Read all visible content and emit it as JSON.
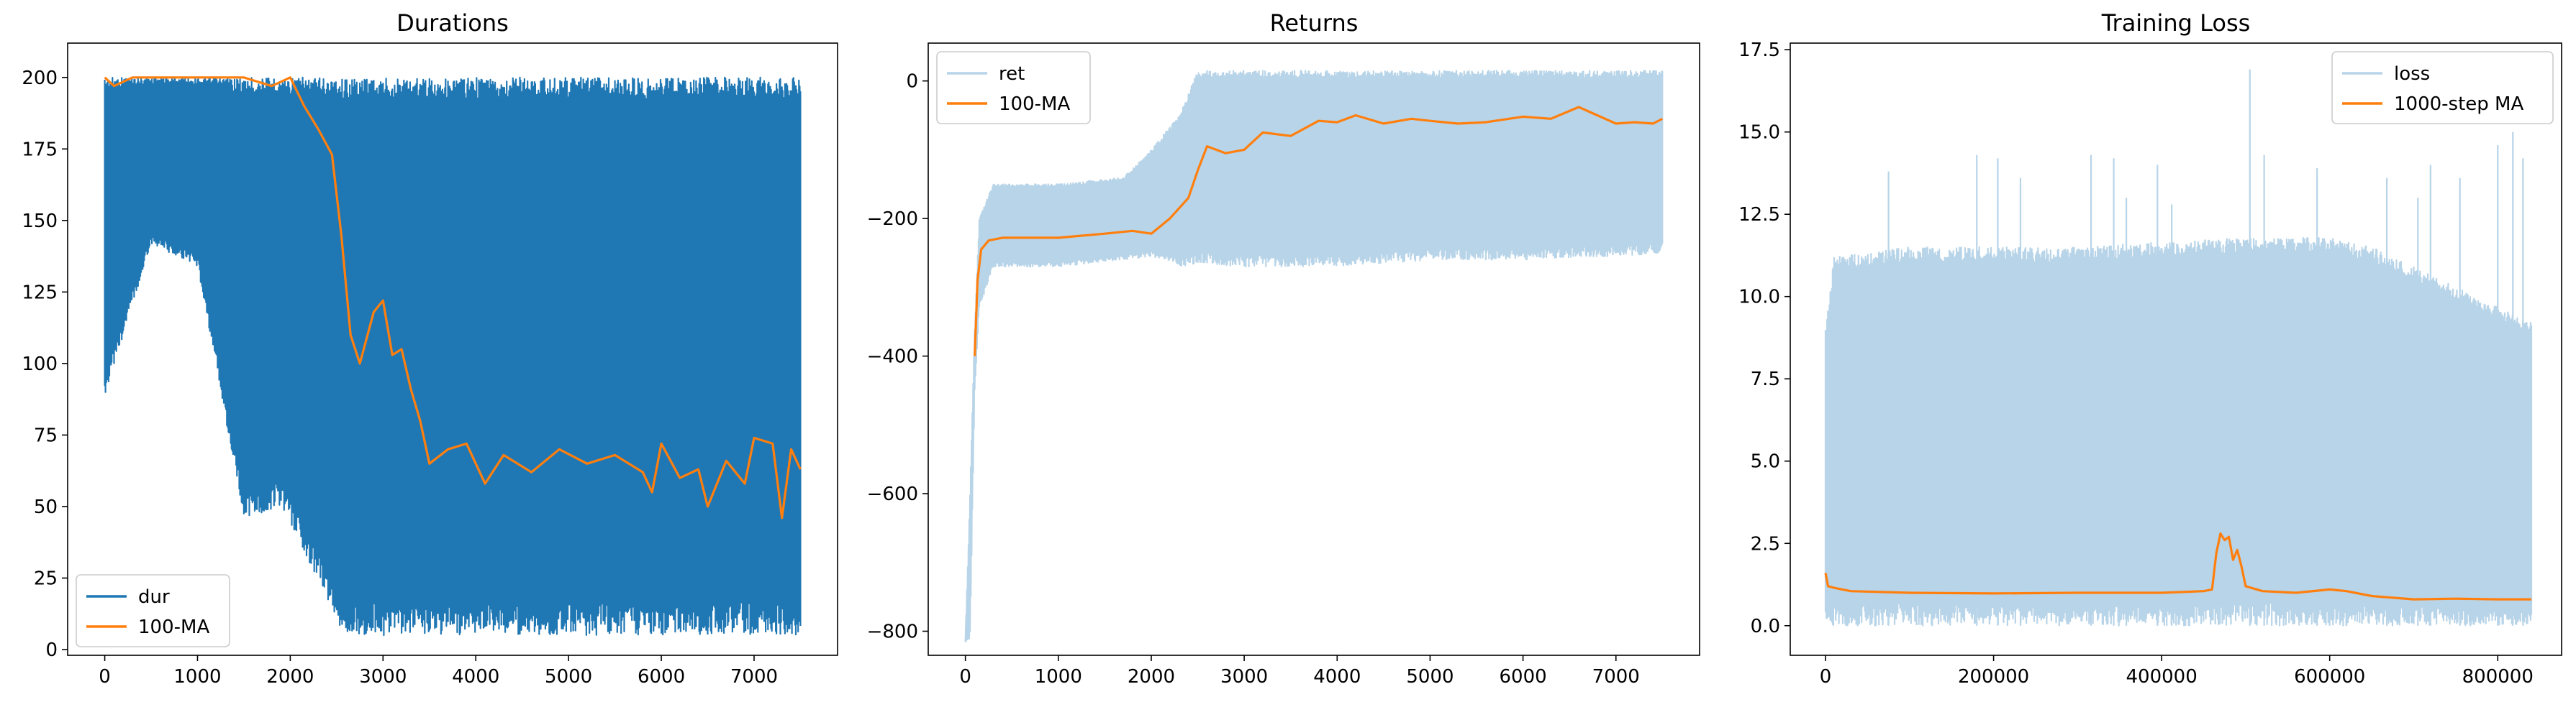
{
  "chart_data": [
    {
      "type": "line",
      "title": "Durations",
      "xlabel": "",
      "ylabel": "",
      "xlim": [
        -400,
        7900
      ],
      "ylim": [
        -2,
        212
      ],
      "xticks": [
        0,
        1000,
        2000,
        3000,
        4000,
        5000,
        6000,
        7000
      ],
      "yticks": [
        0,
        25,
        50,
        75,
        100,
        125,
        150,
        175,
        200
      ],
      "legend_position": "lower-left",
      "series": [
        {
          "name": "dur",
          "color": "#1f77b4",
          "style": "noisy-envelope",
          "x": [
            0,
            500,
            1000,
            1500,
            1900,
            2100,
            2300,
            2450,
            2550,
            7500
          ],
          "upper": [
            200,
            200,
            200,
            200,
            200,
            200,
            200,
            200,
            200,
            200
          ],
          "lower": [
            89,
            142,
            134,
            46,
            50,
            38,
            24,
            14,
            5,
            5
          ]
        },
        {
          "name": "100-MA",
          "color": "#ff7f0e",
          "style": "line",
          "x": [
            0,
            100,
            300,
            1000,
            1500,
            1800,
            2000,
            2150,
            2300,
            2450,
            2550,
            2650,
            2750,
            2900,
            3000,
            3100,
            3200,
            3300,
            3400,
            3500,
            3700,
            3900,
            4100,
            4300,
            4600,
            4900,
            5200,
            5500,
            5800,
            5900,
            6000,
            6200,
            6400,
            6500,
            6700,
            6900,
            7000,
            7200,
            7300,
            7400,
            7500
          ],
          "values": [
            200,
            197,
            200,
            200,
            200,
            197,
            200,
            190,
            182,
            173,
            145,
            110,
            100,
            118,
            122,
            103,
            105,
            91,
            80,
            65,
            70,
            72,
            58,
            68,
            62,
            70,
            65,
            68,
            62,
            55,
            72,
            60,
            63,
            50,
            66,
            58,
            74,
            72,
            46,
            70,
            63
          ]
        }
      ]
    },
    {
      "type": "line",
      "title": "Returns",
      "xlabel": "",
      "ylabel": "",
      "xlim": [
        -400,
        7900
      ],
      "ylim": [
        -835,
        55
      ],
      "xticks": [
        0,
        1000,
        2000,
        3000,
        4000,
        5000,
        6000,
        7000
      ],
      "yticks": [
        -800,
        -600,
        -400,
        -200,
        0
      ],
      "legend_position": "upper-left",
      "series": [
        {
          "name": "ret",
          "color": "#b8d4e8",
          "style": "noisy-envelope",
          "x": [
            0,
            50,
            100,
            150,
            300,
            1000,
            1700,
            2000,
            2300,
            2500,
            3000,
            4000,
            5000,
            6000,
            7000,
            7500
          ],
          "upper": [
            -810,
            -600,
            -360,
            -200,
            -150,
            -150,
            -140,
            -100,
            -50,
            15,
            15,
            15,
            15,
            15,
            15,
            15
          ],
          "lower": [
            -815,
            -810,
            -450,
            -330,
            -270,
            -270,
            -260,
            -255,
            -270,
            -265,
            -270,
            -270,
            -260,
            -260,
            -255,
            -250
          ]
        },
        {
          "name": "100-MA",
          "color": "#ff7f0e",
          "style": "line",
          "x": [
            100,
            130,
            170,
            250,
            400,
            1000,
            1500,
            1800,
            2000,
            2200,
            2400,
            2500,
            2600,
            2800,
            3000,
            3200,
            3500,
            3800,
            4000,
            4200,
            4500,
            4800,
            5000,
            5300,
            5600,
            6000,
            6300,
            6600,
            6800,
            7000,
            7200,
            7400,
            7500
          ],
          "values": [
            -400,
            -290,
            -245,
            -232,
            -228,
            -228,
            -222,
            -218,
            -222,
            -200,
            -170,
            -130,
            -95,
            -105,
            -100,
            -75,
            -80,
            -58,
            -60,
            -50,
            -62,
            -55,
            -58,
            -62,
            -60,
            -52,
            -55,
            -38,
            -50,
            -62,
            -60,
            -62,
            -55
          ]
        }
      ]
    },
    {
      "type": "line",
      "title": "Training Loss",
      "xlabel": "",
      "ylabel": "",
      "xlim": [
        -42000,
        876000
      ],
      "ylim": [
        -0.9,
        17.7
      ],
      "xticks": [
        0,
        200000,
        400000,
        600000,
        800000
      ],
      "yticks": [
        0.0,
        2.5,
        5.0,
        7.5,
        10.0,
        12.5,
        15.0,
        17.5
      ],
      "legend_position": "upper-right",
      "series": [
        {
          "name": "loss",
          "color": "#b8d4e8",
          "style": "noisy-envelope",
          "x": [
            0,
            10000,
            100000,
            300000,
            500000,
            600000,
            650000,
            840000
          ],
          "upper": [
            9,
            11.2,
            11.5,
            11.5,
            11.8,
            11.8,
            11.5,
            9.2
          ],
          "lower": [
            0,
            0,
            0,
            0,
            0,
            0,
            0,
            0
          ],
          "spikes": [
            [
              60000,
              11.2
            ],
            [
              75000,
              13.8
            ],
            [
              180000,
              14.3
            ],
            [
              205000,
              14.2
            ],
            [
              232000,
              13.6
            ],
            [
              316000,
              14.3
            ],
            [
              343000,
              14.2
            ],
            [
              358000,
              13.0
            ],
            [
              395000,
              14.0
            ],
            [
              412000,
              12.8
            ],
            [
              505000,
              16.9
            ],
            [
              522000,
              14.3
            ],
            [
              585000,
              13.9
            ],
            [
              600000,
              6.0
            ],
            [
              620000,
              6.4
            ],
            [
              668000,
              13.6
            ],
            [
              705000,
              13.0
            ],
            [
              720000,
              14.0
            ],
            [
              755000,
              13.6
            ],
            [
              800000,
              14.6
            ],
            [
              818000,
              15.0
            ],
            [
              830000,
              14.2
            ]
          ]
        },
        {
          "name": "1000-step MA",
          "color": "#ff7f0e",
          "style": "line",
          "x": [
            0,
            3000,
            10000,
            30000,
            100000,
            200000,
            300000,
            400000,
            450000,
            460000,
            465000,
            470000,
            475000,
            480000,
            485000,
            490000,
            495000,
            500000,
            520000,
            560000,
            600000,
            620000,
            650000,
            700000,
            750000,
            800000,
            840000
          ],
          "values": [
            1.6,
            1.2,
            1.15,
            1.05,
            1.0,
            0.98,
            1.0,
            1.0,
            1.05,
            1.1,
            2.2,
            2.8,
            2.6,
            2.7,
            2.0,
            2.3,
            1.8,
            1.2,
            1.05,
            1.0,
            1.1,
            1.05,
            0.9,
            0.8,
            0.82,
            0.8,
            0.8
          ]
        }
      ]
    }
  ]
}
